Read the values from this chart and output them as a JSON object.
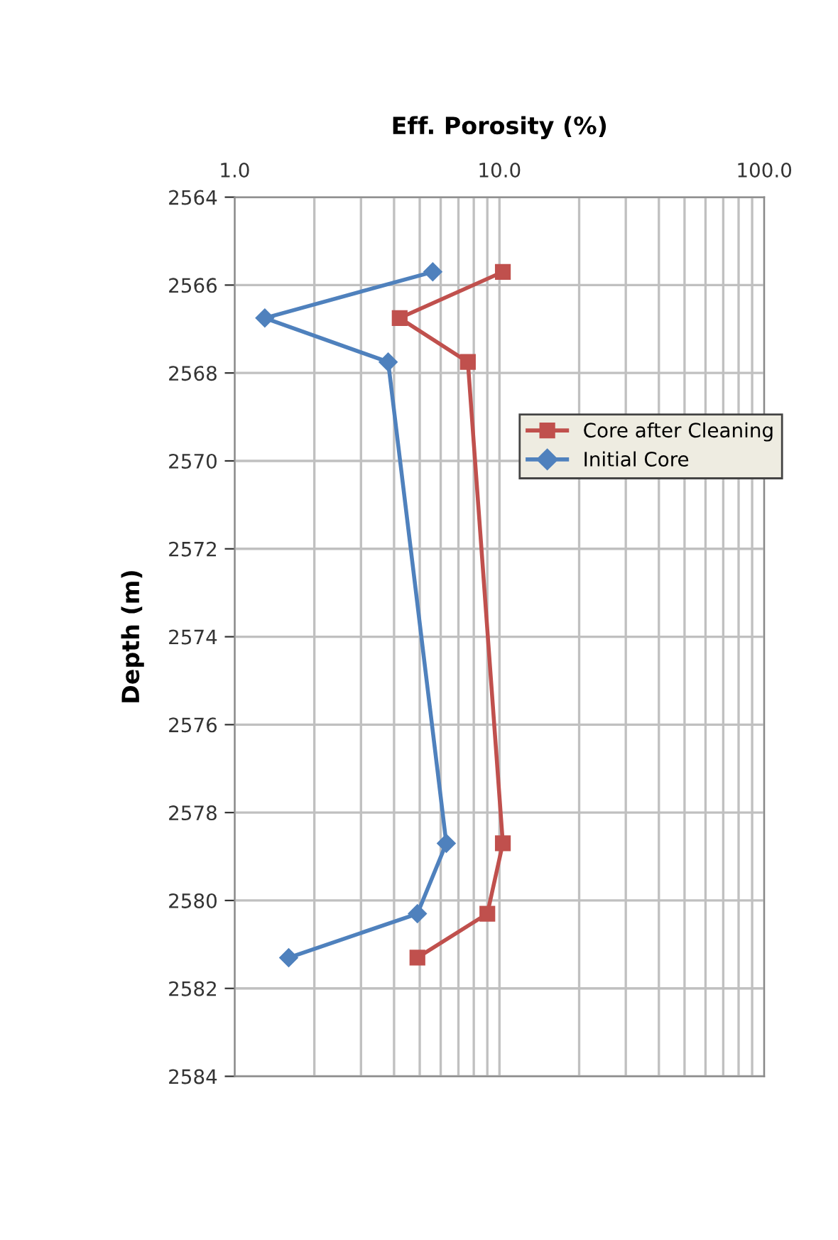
{
  "chart_data": {
    "type": "line",
    "title": "Eff. Porosity (%)",
    "ylabel": "Depth (m)",
    "log": "x",
    "xlim": [
      1,
      100
    ],
    "ylim": [
      2584,
      2564
    ],
    "xticks": [
      {
        "value": 1,
        "label": "1.0"
      },
      {
        "value": 2,
        "label": null
      },
      {
        "value": 3,
        "label": null
      },
      {
        "value": 4,
        "label": null
      },
      {
        "value": 5,
        "label": null
      },
      {
        "value": 6,
        "label": null
      },
      {
        "value": 7,
        "label": null
      },
      {
        "value": 8,
        "label": null
      },
      {
        "value": 9,
        "label": null
      },
      {
        "value": 10,
        "label": "10.0"
      },
      {
        "value": 20,
        "label": null
      },
      {
        "value": 30,
        "label": null
      },
      {
        "value": 40,
        "label": null
      },
      {
        "value": 50,
        "label": null
      },
      {
        "value": 60,
        "label": null
      },
      {
        "value": 70,
        "label": null
      },
      {
        "value": 80,
        "label": null
      },
      {
        "value": 90,
        "label": null
      },
      {
        "value": 100,
        "label": "100.0"
      }
    ],
    "yticks": [
      2564,
      2566,
      2568,
      2570,
      2572,
      2574,
      2576,
      2578,
      2580,
      2582,
      2584
    ],
    "grid": true,
    "legend": "right",
    "series": [
      {
        "name": "Core after Cleaning",
        "color": "#c0504d",
        "marker": "square",
        "x": [
          10.3,
          4.2,
          7.6,
          10.3,
          9.0,
          4.9
        ],
        "values": [
          2565.7,
          2566.75,
          2567.75,
          2578.7,
          2580.3,
          2581.3
        ]
      },
      {
        "name": "Initial Core",
        "color": "#4f81bd",
        "marker": "diamond",
        "x": [
          5.6,
          1.3,
          3.8,
          6.3,
          4.9,
          1.6
        ],
        "values": [
          2565.7,
          2566.75,
          2567.75,
          2578.7,
          2580.3,
          2581.3
        ]
      }
    ]
  }
}
